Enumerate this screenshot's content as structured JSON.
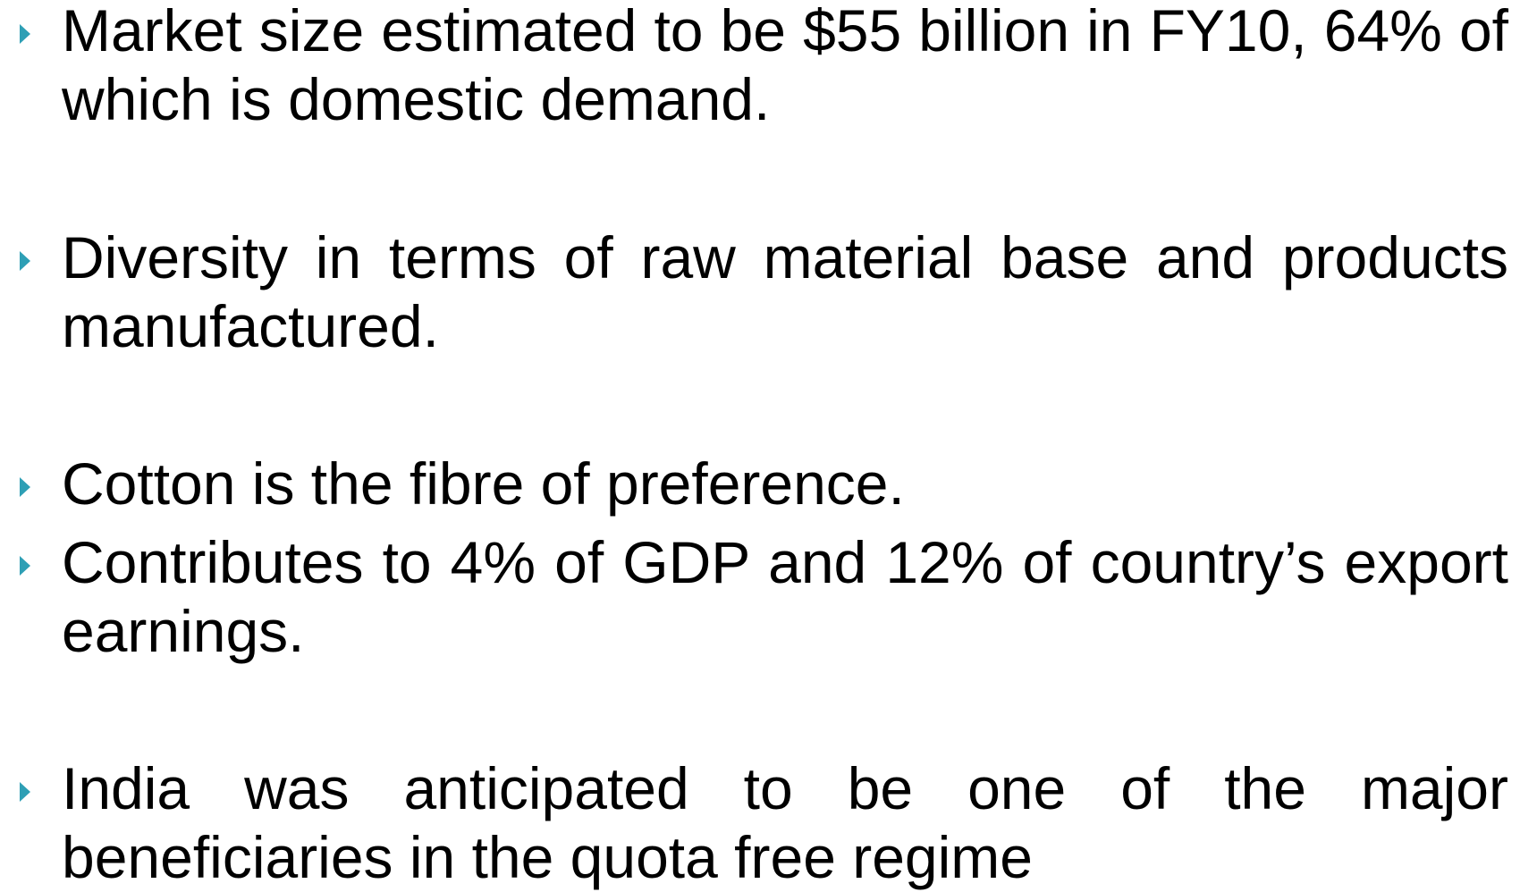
{
  "bullets": [
    "Market size estimated to be $55 billion in FY10, 64% of which is domestic demand.",
    "Diversity in terms of raw material base and products manufactured.",
    "Cotton is the fibre of preference.",
    "Contributes to 4% of GDP and 12% of country’s export earnings.",
    "India was anticipated to be one of the major beneficiaries in the quota free regime"
  ]
}
